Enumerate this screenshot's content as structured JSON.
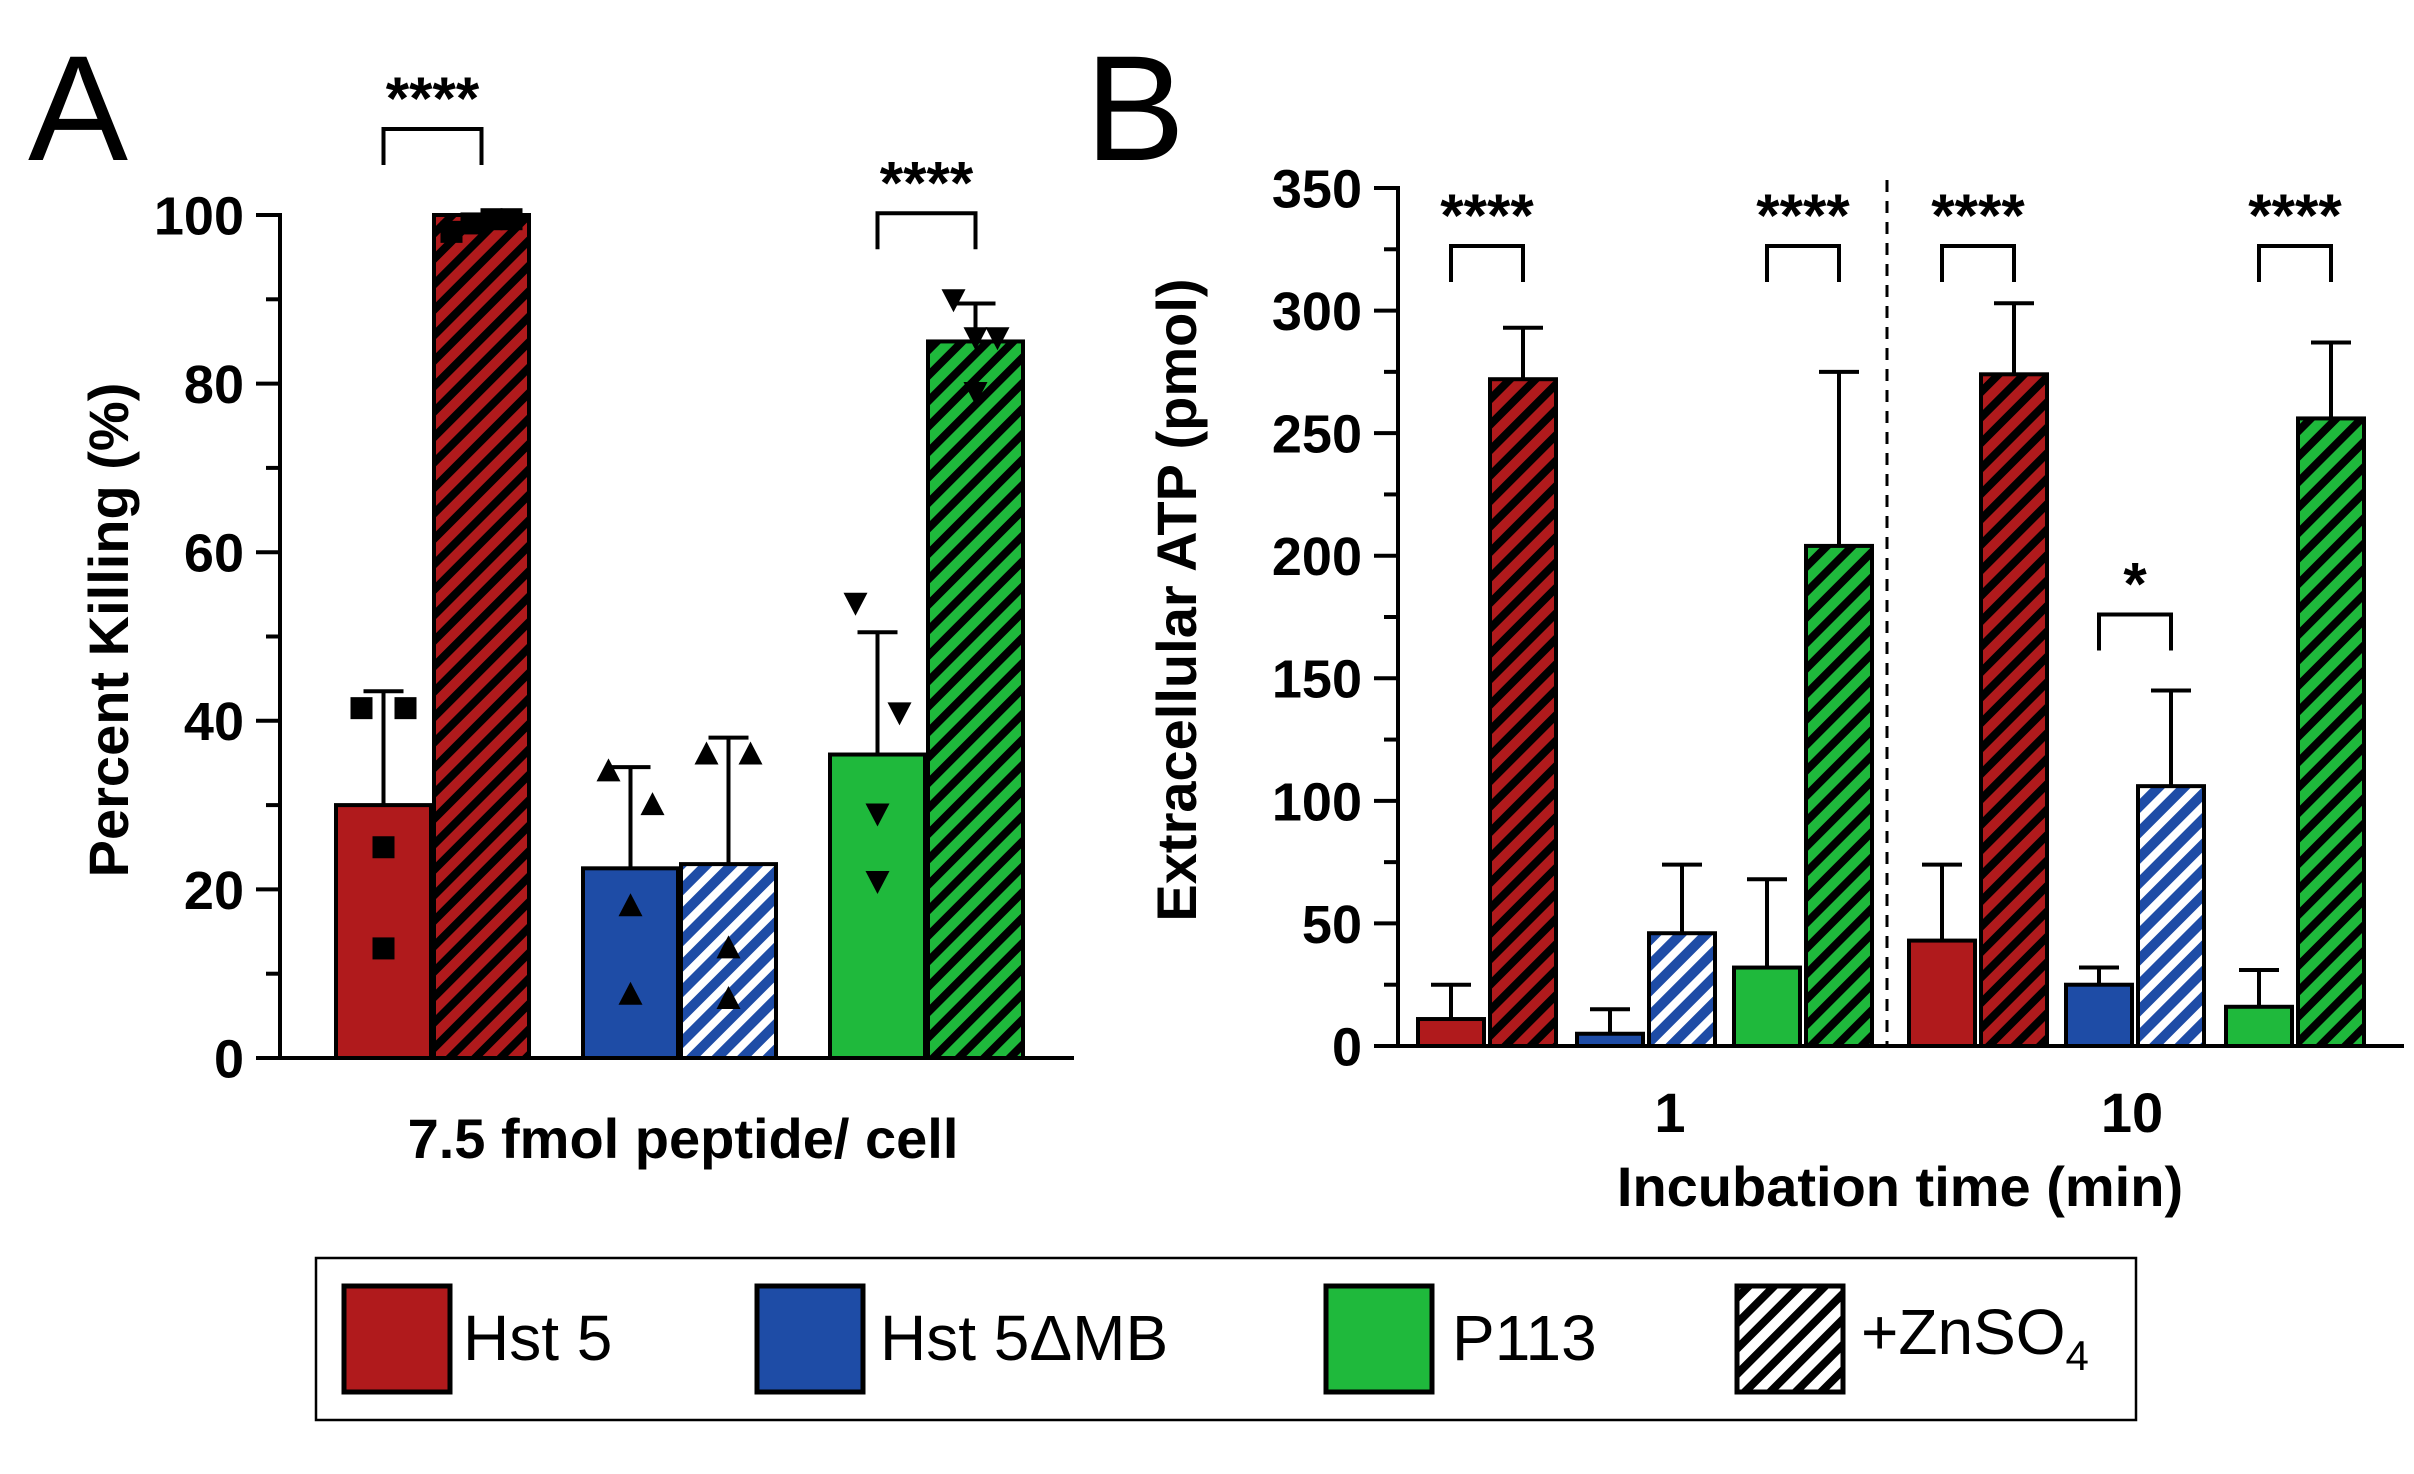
{
  "colors": {
    "hst5": "#b01a1c",
    "hst5dmb": "#1e4ca6",
    "p113": "#1fb93c",
    "zn": "#ffffff",
    "ink": "#000000"
  },
  "legend": {
    "items": [
      {
        "label": "Hst 5",
        "series": "hst5",
        "hatched": false
      },
      {
        "label": "Hst 5ΔMB",
        "series": "hst5dmb",
        "hatched": false
      },
      {
        "label": "P113",
        "series": "p113",
        "hatched": false
      }
    ],
    "zn_label_prefix": "+ZnSO",
    "zn_label_sub": "4"
  },
  "chart_data": [
    {
      "panel": "A",
      "type": "bar",
      "ylabel": "Percent Killing (%)",
      "xlabel": "7.5 fmol peptide/ cell",
      "ylim": [
        0,
        100
      ],
      "yticks": [
        "0",
        "20",
        "40",
        "60",
        "80",
        "100"
      ],
      "bars": [
        {
          "series": "hst5",
          "treatment": "none",
          "mean": 30,
          "sd": 13.5,
          "points": [
            41.5,
            41.5,
            25,
            13
          ],
          "marker": "square"
        },
        {
          "series": "hst5",
          "treatment": "ZnSO4",
          "mean": 100,
          "sd": 0,
          "points": [
            98,
            99,
            99.5,
            99.5
          ],
          "marker": "square"
        },
        {
          "series": "hst5dmb",
          "treatment": "none",
          "mean": 22.5,
          "sd": 12,
          "points": [
            34,
            30,
            18,
            7.5
          ],
          "marker": "triangle-up"
        },
        {
          "series": "hst5dmb",
          "treatment": "ZnSO4",
          "mean": 23,
          "sd": 15,
          "points": [
            36,
            36,
            13,
            7
          ],
          "marker": "triangle-up"
        },
        {
          "series": "p113",
          "treatment": "none",
          "mean": 36,
          "sd": 14.5,
          "points": [
            54,
            41,
            29,
            21
          ],
          "marker": "triangle-down"
        },
        {
          "series": "p113",
          "treatment": "ZnSO4",
          "mean": 85,
          "sd": 4.5,
          "points": [
            90,
            85.5,
            85.5,
            79
          ],
          "marker": "triangle-down"
        }
      ],
      "significance": [
        {
          "pair": [
            0,
            1
          ],
          "label": "****"
        },
        {
          "pair": [
            4,
            5
          ],
          "label": "****"
        }
      ]
    },
    {
      "panel": "B",
      "type": "bar",
      "ylabel": "Extracellular ATP (pmol)",
      "xlabel": "Incubation time (min)",
      "ylim": [
        0,
        350
      ],
      "yticks": [
        "0",
        "50",
        "100",
        "150",
        "200",
        "250",
        "300",
        "350"
      ],
      "groups": [
        "1",
        "10"
      ],
      "bars": [
        {
          "group": 0,
          "series": "hst5",
          "treatment": "none",
          "mean": 11,
          "sd": 14
        },
        {
          "group": 0,
          "series": "hst5",
          "treatment": "ZnSO4",
          "mean": 272,
          "sd": 21
        },
        {
          "group": 0,
          "series": "hst5dmb",
          "treatment": "none",
          "mean": 5,
          "sd": 10
        },
        {
          "group": 0,
          "series": "hst5dmb",
          "treatment": "ZnSO4",
          "mean": 46,
          "sd": 28
        },
        {
          "group": 0,
          "series": "p113",
          "treatment": "none",
          "mean": 32,
          "sd": 36
        },
        {
          "group": 0,
          "series": "p113",
          "treatment": "ZnSO4",
          "mean": 204,
          "sd": 71
        },
        {
          "group": 1,
          "series": "hst5",
          "treatment": "none",
          "mean": 43,
          "sd": 31
        },
        {
          "group": 1,
          "series": "hst5",
          "treatment": "ZnSO4",
          "mean": 274,
          "sd": 29
        },
        {
          "group": 1,
          "series": "hst5dmb",
          "treatment": "none",
          "mean": 25,
          "sd": 7
        },
        {
          "group": 1,
          "series": "hst5dmb",
          "treatment": "ZnSO4",
          "mean": 106,
          "sd": 39
        },
        {
          "group": 1,
          "series": "p113",
          "treatment": "none",
          "mean": 16,
          "sd": 15
        },
        {
          "group": 1,
          "series": "p113",
          "treatment": "ZnSO4",
          "mean": 256,
          "sd": 31
        }
      ],
      "significance": [
        {
          "pair": [
            0,
            1
          ],
          "label": "****"
        },
        {
          "pair": [
            4,
            5
          ],
          "label": "****"
        },
        {
          "pair": [
            6,
            7
          ],
          "label": "****"
        },
        {
          "pair": [
            8,
            9
          ],
          "label": "*"
        },
        {
          "pair": [
            10,
            11
          ],
          "label": "****"
        }
      ]
    }
  ]
}
